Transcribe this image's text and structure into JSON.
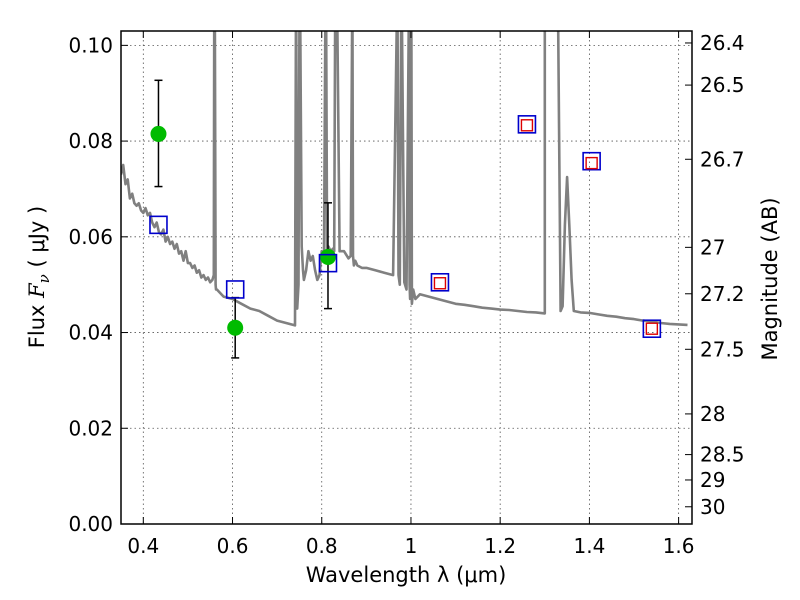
{
  "chart_data": {
    "type": "line",
    "title": "",
    "xlabel": "Wavelength  λ (μm)",
    "ylabel_parts": [
      "Flux  ",
      "F",
      "ν",
      "  ( μJy )"
    ],
    "y2label": "Magnitude (AB)",
    "xlim": [
      0.35,
      1.63
    ],
    "ylim": [
      0.0,
      0.103
    ],
    "grid": true,
    "x_ticks": [
      0.4,
      0.6,
      0.8,
      1.0,
      1.2,
      1.4,
      1.6
    ],
    "x_tick_labels": [
      "0.4",
      "0.6",
      "0.8",
      "1",
      "1.2",
      "1.4",
      "1.6"
    ],
    "y_ticks": [
      0.0,
      0.02,
      0.04,
      0.06,
      0.08,
      0.1
    ],
    "y_tick_labels": [
      "0.00",
      "0.02",
      "0.04",
      "0.06",
      "0.08",
      "0.10"
    ],
    "mag_ticks": [
      {
        "label": "26.4",
        "flux": 0.1005
      },
      {
        "label": "26.5",
        "flux": 0.0917
      },
      {
        "label": "26.7",
        "flux": 0.0762
      },
      {
        "label": "27",
        "flux": 0.0578
      },
      {
        "label": "27.2",
        "flux": 0.0481
      },
      {
        "label": "27.5",
        "flux": 0.0365
      },
      {
        "label": "28",
        "flux": 0.023
      },
      {
        "label": "28.5",
        "flux": 0.0145
      },
      {
        "label": "29",
        "flux": 0.0092
      },
      {
        "label": "30",
        "flux": 0.0036
      }
    ],
    "colors": {
      "model": "#808080",
      "observed": "#00bb00",
      "model_synthetic": "#0000cc",
      "model_alt": "#dd0000",
      "errorbar": "#000000",
      "grid": "#555555"
    },
    "series": [
      {
        "name": "model spectrum",
        "style": "line",
        "x": [
          0.35,
          0.355,
          0.36,
          0.365,
          0.37,
          0.375,
          0.38,
          0.385,
          0.39,
          0.395,
          0.4,
          0.405,
          0.41,
          0.415,
          0.42,
          0.425,
          0.43,
          0.435,
          0.44,
          0.445,
          0.45,
          0.455,
          0.46,
          0.465,
          0.47,
          0.475,
          0.48,
          0.485,
          0.49,
          0.495,
          0.5,
          0.505,
          0.51,
          0.515,
          0.52,
          0.525,
          0.53,
          0.535,
          0.54,
          0.545,
          0.55,
          0.555,
          0.558,
          0.559,
          0.5605,
          0.562,
          0.563,
          0.565,
          0.57,
          0.58,
          0.6,
          0.62,
          0.64,
          0.66,
          0.68,
          0.7,
          0.72,
          0.74,
          0.742,
          0.743,
          0.745,
          0.748,
          0.75,
          0.752,
          0.755,
          0.758,
          0.76,
          0.765,
          0.77,
          0.775,
          0.78,
          0.785,
          0.79,
          0.795,
          0.8,
          0.805,
          0.808,
          0.81,
          0.812,
          0.815,
          0.82,
          0.825,
          0.828,
          0.83,
          0.835,
          0.84,
          0.85,
          0.86,
          0.865,
          0.868,
          0.869,
          0.87,
          0.872,
          0.875,
          0.88,
          0.89,
          0.9,
          0.92,
          0.94,
          0.96,
          0.968,
          0.97,
          0.972,
          0.975,
          0.978,
          0.98,
          0.985,
          0.99,
          0.995,
          0.996,
          0.997,
          0.998,
          1.0,
          1.001,
          1.002,
          1.005,
          1.01,
          1.02,
          1.04,
          1.06,
          1.08,
          1.1,
          1.12,
          1.14,
          1.16,
          1.18,
          1.2,
          1.22,
          1.24,
          1.26,
          1.28,
          1.3,
          1.3,
          1.305,
          1.31,
          1.32,
          1.33,
          1.335,
          1.3355,
          1.34,
          1.345,
          1.35,
          1.355,
          1.36,
          1.365,
          1.38,
          1.4,
          1.42,
          1.44,
          1.46,
          1.48,
          1.5,
          1.52,
          1.54,
          1.56,
          1.58,
          1.6,
          1.62
        ],
        "y": [
          0.073,
          0.075,
          0.071,
          0.072,
          0.068,
          0.069,
          0.067,
          0.0665,
          0.067,
          0.0655,
          0.065,
          0.066,
          0.0645,
          0.065,
          0.063,
          0.062,
          0.063,
          0.061,
          0.0605,
          0.0615,
          0.059,
          0.06,
          0.0585,
          0.059,
          0.0575,
          0.0585,
          0.0565,
          0.057,
          0.055,
          0.057,
          0.0545,
          0.0545,
          0.0535,
          0.054,
          0.0525,
          0.053,
          0.0515,
          0.052,
          0.051,
          0.0515,
          0.0505,
          0.051,
          0.052,
          0.104,
          0.104,
          0.05,
          0.049,
          0.049,
          0.0485,
          0.0475,
          0.047,
          0.046,
          0.045,
          0.0445,
          0.0435,
          0.0425,
          0.042,
          0.0415,
          0.104,
          0.104,
          0.045,
          0.05,
          0.104,
          0.104,
          0.058,
          0.053,
          0.051,
          0.053,
          0.057,
          0.055,
          0.056,
          0.053,
          0.051,
          0.052,
          0.057,
          0.056,
          0.104,
          0.104,
          0.056,
          0.058,
          0.057,
          0.0575,
          0.057,
          0.104,
          0.104,
          0.057,
          0.057,
          0.0555,
          0.056,
          0.104,
          0.104,
          0.056,
          0.054,
          0.055,
          0.054,
          0.0535,
          0.0535,
          0.053,
          0.0525,
          0.052,
          0.104,
          0.104,
          0.052,
          0.05,
          0.104,
          0.104,
          0.0505,
          0.049,
          0.104,
          0.104,
          0.05,
          0.047,
          0.104,
          0.104,
          0.046,
          0.049,
          0.047,
          0.048,
          0.0475,
          0.047,
          0.0465,
          0.046,
          0.0458,
          0.0455,
          0.0452,
          0.045,
          0.0448,
          0.0447,
          0.0445,
          0.0443,
          0.0442,
          0.044,
          0.104,
          0.104,
          0.104,
          0.104,
          0.104,
          0.05,
          0.0445,
          0.0455,
          0.0625,
          0.0725,
          0.0625,
          0.051,
          0.0445,
          0.0442,
          0.0441,
          0.0438,
          0.0435,
          0.0433,
          0.043,
          0.0428,
          0.0425,
          0.0423,
          0.042,
          0.0418,
          0.0417,
          0.0416
        ]
      },
      {
        "name": "observed photometry",
        "style": "points",
        "x": [
          0.434,
          0.606,
          0.814
        ],
        "y": [
          0.0815,
          0.041,
          0.0558
        ],
        "yerr_low": [
          0.011,
          0.0063,
          0.0108
        ],
        "yerr_high": [
          0.0112,
          0.0063,
          0.0113
        ]
      },
      {
        "name": "model photometry",
        "style": "open-squares",
        "x": [
          0.434,
          0.606,
          0.814,
          1.065,
          1.26,
          1.405,
          1.54
        ],
        "y": [
          0.0625,
          0.049,
          0.0545,
          0.0505,
          0.0835,
          0.0758,
          0.0408
        ]
      },
      {
        "name": "alternate model photometry",
        "style": "small-open-squares",
        "x": [
          1.065,
          1.26,
          1.405,
          1.54
        ],
        "y": [
          0.0503,
          0.0833,
          0.0754,
          0.0408
        ]
      }
    ]
  }
}
